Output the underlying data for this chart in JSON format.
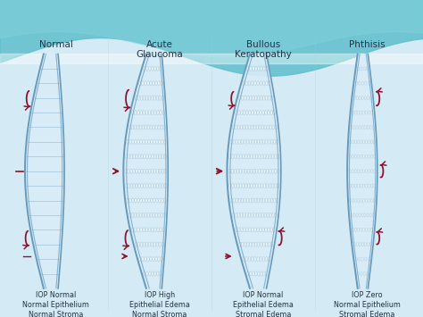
{
  "conditions": [
    "Normal",
    "Acute\nGlaucoma",
    "Bullous\nKeratopathy",
    "Phthisis"
  ],
  "descriptions": [
    "IOP Normal\nNormal Epithelium\nNormal Stroma\nNormal Endothelium",
    "IOP High\nEpithelial Edema\nNormal Stroma\nNormal Endothelium",
    "IOP Normal\nEpithelial Edema\nStromal Edema\nAbnormal Endothelium",
    "IOP Zero\nNormal Epithelium\nStromal Edema\nAbnormal Endothelium"
  ],
  "bg_color": "#cce8f0",
  "wave_color": "#5bbccc",
  "cornea_fill": "#d8edf8",
  "cornea_edge": "#6699bb",
  "stroma_line": "#88aacc",
  "dot_fill": "#e8f4fc",
  "dot_edge": "#99bbcc",
  "arrow_color": "#8b1530",
  "text_color": "#223344",
  "label_fontsize": 7.5,
  "desc_fontsize": 5.8
}
